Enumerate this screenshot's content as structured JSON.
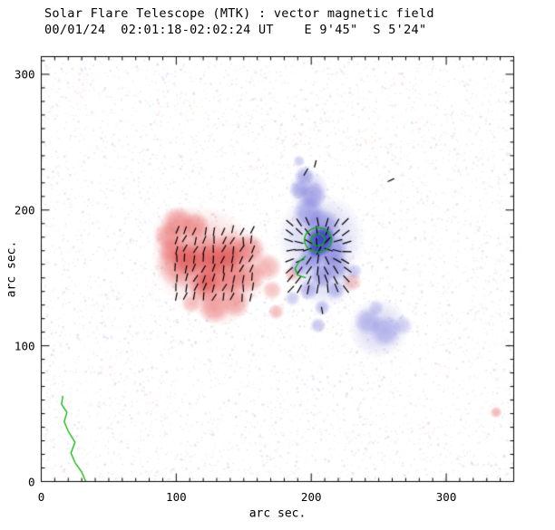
{
  "header": {
    "title_line1": "Solar Flare Telescope (MTK) : vector magnetic field",
    "title_line2": "00/01/24  02:01:18-02:02:24 UT    E 9'45\"  S 5'24\""
  },
  "axes": {
    "xlabel": "arc sec.",
    "ylabel": "arc sec.",
    "x_ticks": [
      0,
      100,
      200,
      300
    ],
    "y_ticks": [
      0,
      100,
      200,
      300
    ],
    "x_range": [
      0,
      350
    ],
    "y_range": [
      0,
      313
    ],
    "minor_step": 10,
    "major_step": 100
  },
  "chart_data": {
    "type": "heatmap",
    "title": "Solar Flare Telescope (MTK) : vector magnetic field",
    "subtitle": "00/01/24  02:01:18-02:02:24 UT    E 9'45\"  S 5'24\"",
    "xlabel": "arc sec.",
    "ylabel": "arc sec.",
    "xlim": [
      0,
      350
    ],
    "ylim": [
      0,
      313
    ],
    "positive_color": "#e86868",
    "positive_core_color": "#d84040",
    "negative_color": "#7070d8",
    "negative_core_color": "#3434c4",
    "contour_color": "#00b400",
    "vector_color": "#000000",
    "pos_blobs": [
      [
        120,
        165,
        26,
        0.3
      ],
      [
        142,
        158,
        20,
        0.28
      ],
      [
        105,
        180,
        16,
        0.3
      ],
      [
        133,
        138,
        16,
        0.3
      ],
      [
        101,
        191,
        8,
        0.55
      ],
      [
        94,
        181,
        7,
        0.5
      ],
      [
        114,
        188,
        7,
        0.5
      ],
      [
        104,
        161,
        13,
        0.6
      ],
      [
        124,
        165,
        12,
        0.6
      ],
      [
        141,
        168,
        10,
        0.6
      ],
      [
        154,
        171,
        8,
        0.55
      ],
      [
        138,
        151,
        10,
        0.6
      ],
      [
        121,
        145,
        9,
        0.6
      ],
      [
        154,
        151,
        8,
        0.5
      ],
      [
        168,
        158,
        7,
        0.45
      ],
      [
        128,
        128,
        8,
        0.5
      ],
      [
        144,
        131,
        7,
        0.45
      ],
      [
        111,
        131,
        5,
        0.4
      ],
      [
        171,
        141,
        5,
        0.4
      ],
      [
        186,
        153,
        4,
        0.45
      ],
      [
        174,
        125,
        4,
        0.45
      ],
      [
        230,
        147,
        5,
        0.4
      ],
      [
        337,
        51,
        3,
        0.5
      ],
      [
        97,
        170,
        7,
        0.45
      ]
    ],
    "pos_core_blobs": [
      [
        108,
        163,
        8,
        0.5
      ],
      [
        126,
        163,
        8,
        0.5
      ],
      [
        140,
        166,
        6,
        0.45
      ],
      [
        122,
        147,
        6,
        0.45
      ]
    ],
    "neg_blobs": [
      [
        207,
        180,
        22,
        0.3
      ],
      [
        210,
        152,
        16,
        0.25
      ],
      [
        250,
        113,
        15,
        0.25
      ],
      [
        198,
        215,
        10,
        0.3
      ],
      [
        195,
        225,
        5,
        0.5
      ],
      [
        191,
        215,
        5,
        0.45
      ],
      [
        201,
        211,
        7,
        0.5
      ],
      [
        198,
        198,
        8,
        0.55
      ],
      [
        208,
        188,
        9,
        0.6
      ],
      [
        206,
        178,
        8,
        0.65
      ],
      [
        215,
        171,
        8,
        0.6
      ],
      [
        201,
        165,
        7,
        0.55
      ],
      [
        191,
        158,
        5,
        0.45
      ],
      [
        218,
        158,
        7,
        0.5
      ],
      [
        208,
        151,
        6,
        0.5
      ],
      [
        198,
        141,
        5,
        0.45
      ],
      [
        218,
        141,
        5,
        0.4
      ],
      [
        208,
        128,
        4,
        0.45
      ],
      [
        205,
        115,
        4,
        0.4
      ],
      [
        186,
        135,
        4,
        0.35
      ],
      [
        242,
        118,
        7,
        0.4
      ],
      [
        255,
        111,
        8,
        0.4
      ],
      [
        268,
        115,
        5,
        0.3
      ],
      [
        248,
        128,
        4,
        0.3
      ],
      [
        232,
        155,
        4,
        0.35
      ],
      [
        191,
        236,
        3,
        0.35
      ]
    ],
    "neg_core_blobs": [
      [
        206,
        176,
        7,
        0.75
      ],
      [
        210,
        181,
        5,
        0.6
      ],
      [
        203,
        170,
        4,
        0.5
      ]
    ],
    "vector_patches": [
      {
        "x0": 100,
        "x1": 158,
        "y0": 136,
        "y1": 188,
        "step": 7,
        "mode": "uniform",
        "angle_deg": 75,
        "jitter": 40,
        "len": 9
      },
      {
        "x0": 184,
        "x1": 228,
        "y0": 142,
        "y1": 196,
        "step": 7,
        "mode": "radial",
        "cx": 206,
        "cy": 172,
        "len": 10
      }
    ],
    "extra_vectors": [
      [
        196,
        228,
        60,
        9
      ],
      [
        203,
        234,
        75,
        8
      ],
      [
        259,
        222,
        25,
        8
      ],
      [
        208,
        126,
        100,
        8
      ]
    ],
    "contour_ellipses": [
      [
        205,
        178,
        10,
        9
      ],
      [
        205,
        178,
        5,
        4.5
      ]
    ],
    "contour_lines": [
      [
        [
          196,
          166
        ],
        [
          191,
          162
        ],
        [
          188,
          157
        ],
        [
          190,
          152
        ],
        [
          196,
          150
        ]
      ],
      [
        [
          33,
          0
        ],
        [
          30,
          7
        ],
        [
          25,
          14
        ],
        [
          22,
          21
        ],
        [
          25,
          29
        ],
        [
          20,
          37
        ],
        [
          17,
          44
        ],
        [
          19,
          51
        ],
        [
          15,
          57
        ],
        [
          16,
          63
        ]
      ]
    ],
    "noise": {
      "count": 6000,
      "seed": 42,
      "colors": [
        "#f3bcbc",
        "#b9bdf0"
      ]
    }
  }
}
